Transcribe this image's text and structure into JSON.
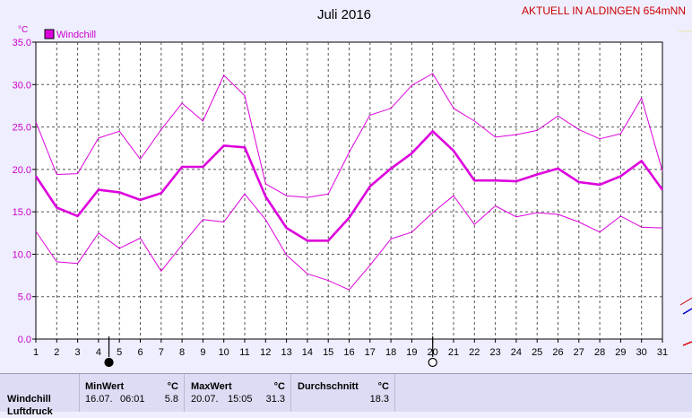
{
  "chart_data": {
    "type": "line",
    "title": "Juli 2016",
    "location_label": "AKTUELL IN ALDINGEN 654mNN",
    "ylabel": "°C",
    "ylim": [
      0,
      35
    ],
    "yticks": [
      "0.0",
      "5.0",
      "10.0",
      "15.0",
      "20.0",
      "25.0",
      "30.0",
      "35.0"
    ],
    "categories": [
      "1",
      "2",
      "3",
      "4",
      "5",
      "6",
      "7",
      "8",
      "9",
      "10",
      "11",
      "12",
      "13",
      "14",
      "15",
      "16",
      "17",
      "18",
      "19",
      "20",
      "21",
      "22",
      "23",
      "24",
      "25",
      "26",
      "27",
      "28",
      "29",
      "30",
      "31"
    ],
    "grid": true,
    "legend": {
      "position": "top-left",
      "entries": [
        "Windchill"
      ]
    },
    "series": [
      {
        "name": "Windchill",
        "role": "max",
        "color": "#dd00dd",
        "values": [
          25.6,
          19.4,
          19.5,
          23.7,
          24.5,
          21.2,
          24.7,
          27.8,
          25.7,
          31.1,
          28.7,
          18.3,
          16.9,
          16.7,
          17.1,
          22.0,
          26.4,
          27.2,
          29.9,
          31.3,
          27.2,
          25.7,
          23.8,
          24.1,
          24.6,
          26.3,
          24.7,
          23.6,
          24.2,
          28.4,
          19.8
        ]
      },
      {
        "name": "Windchill",
        "role": "mean",
        "color": "#dd00dd",
        "values": [
          19.2,
          15.5,
          14.5,
          17.6,
          17.3,
          16.4,
          17.2,
          20.3,
          20.3,
          22.8,
          22.6,
          16.8,
          13.1,
          11.6,
          11.6,
          14.3,
          18.0,
          20.1,
          21.9,
          24.5,
          22.2,
          18.7,
          18.7,
          18.6,
          19.4,
          20.1,
          18.5,
          18.2,
          19.2,
          21.0,
          17.6
        ]
      },
      {
        "name": "Windchill",
        "role": "min",
        "color": "#dd00dd",
        "values": [
          12.7,
          9.1,
          8.9,
          12.5,
          10.7,
          11.9,
          8.0,
          11.1,
          14.1,
          13.8,
          17.1,
          14.1,
          9.9,
          7.7,
          6.9,
          5.8,
          8.7,
          11.8,
          12.6,
          14.9,
          16.9,
          13.5,
          15.7,
          14.4,
          14.9,
          14.7,
          13.8,
          12.6,
          14.5,
          13.2,
          13.1
        ]
      }
    ],
    "moon_markers": [
      {
        "day": 4.5,
        "phase": "new-moon"
      },
      {
        "day": 20,
        "phase": "full-moon"
      }
    ]
  },
  "stats": {
    "row_label": "Windchill",
    "row_label_cut": "Luftdruck",
    "min": {
      "header": "MinWert",
      "unit": "°C",
      "date": "16.07.",
      "time": "06:01",
      "value": "5.8"
    },
    "max": {
      "header": "MaxWert",
      "unit": "°C",
      "date": "20.07.",
      "time": "15:05",
      "value": "31.3"
    },
    "avg": {
      "header": "Durchschnitt",
      "unit": "°C",
      "value": "18.3"
    }
  }
}
